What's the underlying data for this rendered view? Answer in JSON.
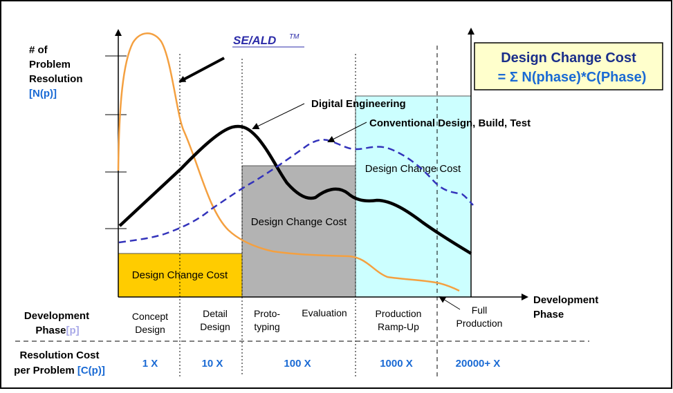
{
  "title_box": {
    "title": "Design Change Cost",
    "formula": "=  Σ N(phase)*C(Phase)"
  },
  "y_axis": {
    "label_lines": [
      "# of",
      "Problem",
      "Resolution"
    ],
    "symbol": "[N(p)]"
  },
  "x_axis": {
    "label_lines": [
      "Development",
      "Phase"
    ]
  },
  "curve_labels": {
    "se_ald": "SE/ALD",
    "se_ald_tm": "TM",
    "digital": "Digital Engineering",
    "conventional": "Conventional Design, Build, Test"
  },
  "cost_boxes": [
    "Design Change Cost",
    "Design Change Cost",
    "Design Change Cost"
  ],
  "row_phase": {
    "label": "Development",
    "label2": "Phase",
    "symbol": "[p]"
  },
  "phases": [
    [
      "Concept",
      "Design"
    ],
    [
      "Detail",
      "Design"
    ],
    [
      "Proto-",
      "typing"
    ],
    [
      "Evaluation"
    ],
    [
      "Production",
      "Ramp-Up"
    ],
    [
      "Full",
      "Production"
    ]
  ],
  "row_cost": {
    "label": "Resolution Cost",
    "label2": "per Problem",
    "symbol": "[C(p)]"
  },
  "costs": [
    "1 X",
    "10 X",
    "100 X",
    "1000 X",
    "20000+ X"
  ],
  "colors": {
    "orange_curve": "#f4a040",
    "digital_curve": "#000000",
    "conventional_curve": "#3333bb",
    "blue_text": "#1a6ad4",
    "cost_box_yellow": "#ffcc00",
    "cost_box_gray": "#b3b3b3",
    "cost_box_cyan": "#ccffff",
    "title_box_bg": "#ffffcc",
    "title_text": "#1a2e8a"
  }
}
